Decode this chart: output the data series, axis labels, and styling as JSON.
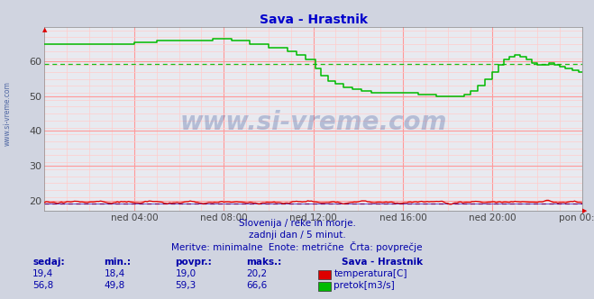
{
  "title": "Sava - Hrastnik",
  "title_color": "#0000cc",
  "bg_color": "#d0d4e0",
  "plot_bg_color": "#e8eaf0",
  "grid_color_major": "#ff9999",
  "grid_color_minor": "#ffcccc",
  "xlim": [
    0,
    288
  ],
  "ylim": [
    17,
    70
  ],
  "yticks": [
    20,
    30,
    40,
    50,
    60
  ],
  "xtick_labels": [
    "ned 04:00",
    "ned 08:00",
    "ned 12:00",
    "ned 16:00",
    "ned 20:00",
    "pon 00:00"
  ],
  "xtick_positions": [
    48,
    96,
    144,
    192,
    240,
    288
  ],
  "avg_temp": 19.0,
  "avg_flow": 59.3,
  "watermark": "www.si-vreme.com",
  "sidebar_text": "www.si-vreme.com",
  "subtitle1": "Slovenija / reke in morje.",
  "subtitle2": "zadnji dan / 5 minut.",
  "subtitle3": "Meritve: minimalne  Enote: metrične  Črta: povprečje",
  "legend_title": "Sava - Hrastnik",
  "temp_label": "temperatura[C]",
  "flow_label": "pretok[m3/s]",
  "temp_color": "#dd0000",
  "flow_color": "#00bb00",
  "blue_line_color": "#0000cc",
  "temp_now": "19,4",
  "temp_min": "18,4",
  "temp_avg": "19,0",
  "temp_max": "20,2",
  "flow_now": "56,8",
  "flow_min": "49,8",
  "flow_avg": "59,3",
  "flow_max": "66,6",
  "col_headers": [
    "sedaj:",
    "min.:",
    "povpr.:",
    "maks.:"
  ],
  "watermark_color": "#1a3a8a",
  "text_color": "#0000aa",
  "text_color_dark": "#003399"
}
